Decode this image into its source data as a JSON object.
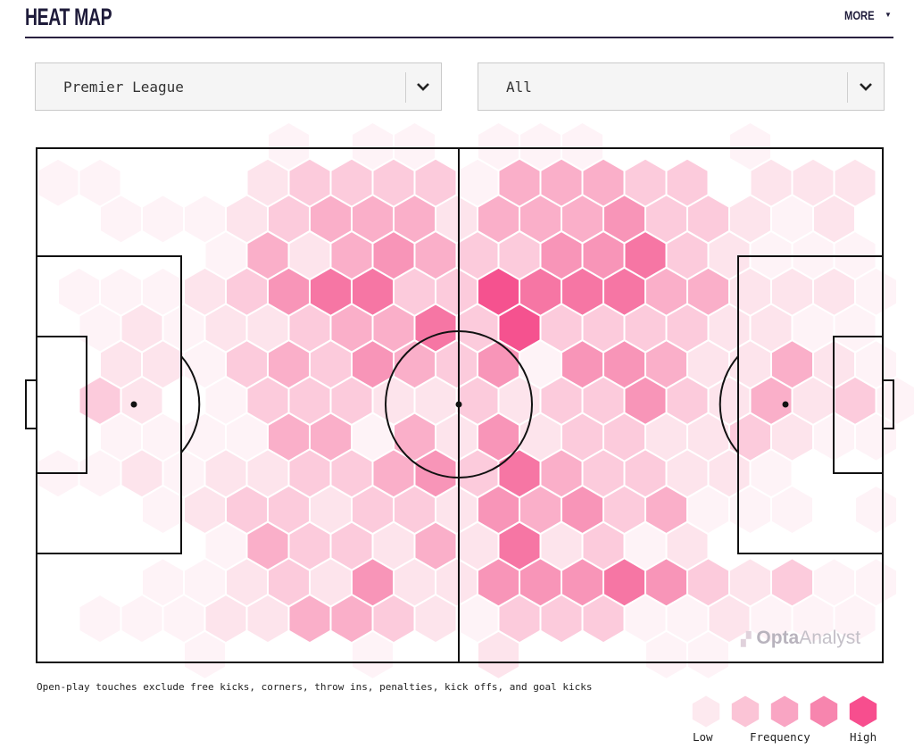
{
  "header": {
    "title": "HEAT MAP",
    "more_label": "MORE"
  },
  "filters": {
    "competition": {
      "value": "Premier League"
    },
    "period": {
      "value": "All"
    }
  },
  "footnote": "Open-play touches exclude free kicks, corners, throw ins, penalties, kick offs, and goal kicks",
  "watermark": {
    "brand": "Opta",
    "product": "Analyst"
  },
  "legend": {
    "low_label": "Low",
    "title": "Frequency",
    "high_label": "High",
    "colors": [
      "#fde9ef",
      "#fbc4d6",
      "#f9a5c3",
      "#f785ae",
      "#f74e8e"
    ]
  },
  "colors": {
    "levels": [
      "none",
      "#fef3f7",
      "#fde4ec",
      "#fccbdc",
      "#faafc9",
      "#f895b8",
      "#f676a4",
      "#f5528f"
    ],
    "pitch_lines": "#111111",
    "title": "#1e1b3a"
  },
  "chart_data": {
    "type": "heatmap",
    "description_of_values": "hexbin intensity level 0 (none) to 7 (highest); rows top to bottom across the pitch, columns left to right; odd-indexed rows offset by half a cell",
    "scale_labels": [
      "Low",
      "Frequency",
      "High"
    ],
    "rows": [
      [
        0,
        0,
        0,
        0,
        0,
        0,
        1,
        0,
        1,
        1,
        0,
        1,
        1,
        1,
        0,
        0,
        0,
        1,
        0,
        0,
        0
      ],
      [
        1,
        1,
        0,
        0,
        0,
        2,
        3,
        3,
        3,
        3,
        1,
        4,
        4,
        4,
        3,
        3,
        0,
        2,
        2,
        2,
        0
      ],
      [
        0,
        0,
        1,
        1,
        1,
        2,
        3,
        4,
        4,
        4,
        2,
        4,
        4,
        4,
        5,
        3,
        3,
        2,
        1,
        2,
        0
      ],
      [
        0,
        0,
        0,
        0,
        1,
        4,
        2,
        4,
        5,
        4,
        3,
        3,
        5,
        5,
        6,
        3,
        2,
        1,
        1,
        1,
        0
      ],
      [
        0,
        1,
        1,
        1,
        2,
        3,
        5,
        6,
        6,
        3,
        3,
        7,
        6,
        6,
        6,
        4,
        4,
        2,
        2,
        2,
        1
      ],
      [
        0,
        1,
        2,
        1,
        2,
        2,
        3,
        4,
        4,
        6,
        3,
        7,
        3,
        3,
        3,
        3,
        2,
        2,
        1,
        1,
        0
      ],
      [
        0,
        0,
        2,
        2,
        1,
        3,
        4,
        3,
        5,
        4,
        3,
        5,
        1,
        5,
        5,
        4,
        2,
        2,
        4,
        2,
        1
      ],
      [
        0,
        3,
        2,
        0,
        1,
        3,
        3,
        3,
        2,
        2,
        3,
        2,
        3,
        3,
        5,
        3,
        2,
        4,
        2,
        3,
        1
      ],
      [
        0,
        0,
        1,
        1,
        1,
        1,
        4,
        4,
        1,
        4,
        2,
        5,
        2,
        3,
        3,
        2,
        2,
        3,
        2,
        1,
        1
      ],
      [
        1,
        1,
        2,
        1,
        2,
        2,
        3,
        3,
        4,
        5,
        3,
        6,
        4,
        3,
        3,
        2,
        2,
        1,
        0,
        0,
        0
      ],
      [
        0,
        0,
        0,
        1,
        2,
        3,
        3,
        2,
        3,
        3,
        2,
        5,
        4,
        5,
        3,
        4,
        1,
        1,
        1,
        0,
        1
      ],
      [
        0,
        0,
        0,
        0,
        1,
        4,
        3,
        3,
        2,
        4,
        2,
        6,
        2,
        3,
        1,
        2,
        0,
        0,
        0,
        0,
        0
      ],
      [
        0,
        0,
        0,
        1,
        1,
        2,
        3,
        2,
        5,
        2,
        2,
        5,
        5,
        5,
        6,
        5,
        3,
        2,
        3,
        1,
        1
      ],
      [
        0,
        1,
        1,
        1,
        2,
        2,
        4,
        4,
        3,
        2,
        1,
        3,
        3,
        3,
        1,
        1,
        2,
        1,
        1,
        1,
        0
      ],
      [
        0,
        0,
        0,
        0,
        1,
        0,
        0,
        0,
        1,
        0,
        0,
        2,
        0,
        0,
        0,
        1,
        1,
        0,
        0,
        0,
        0
      ]
    ]
  }
}
